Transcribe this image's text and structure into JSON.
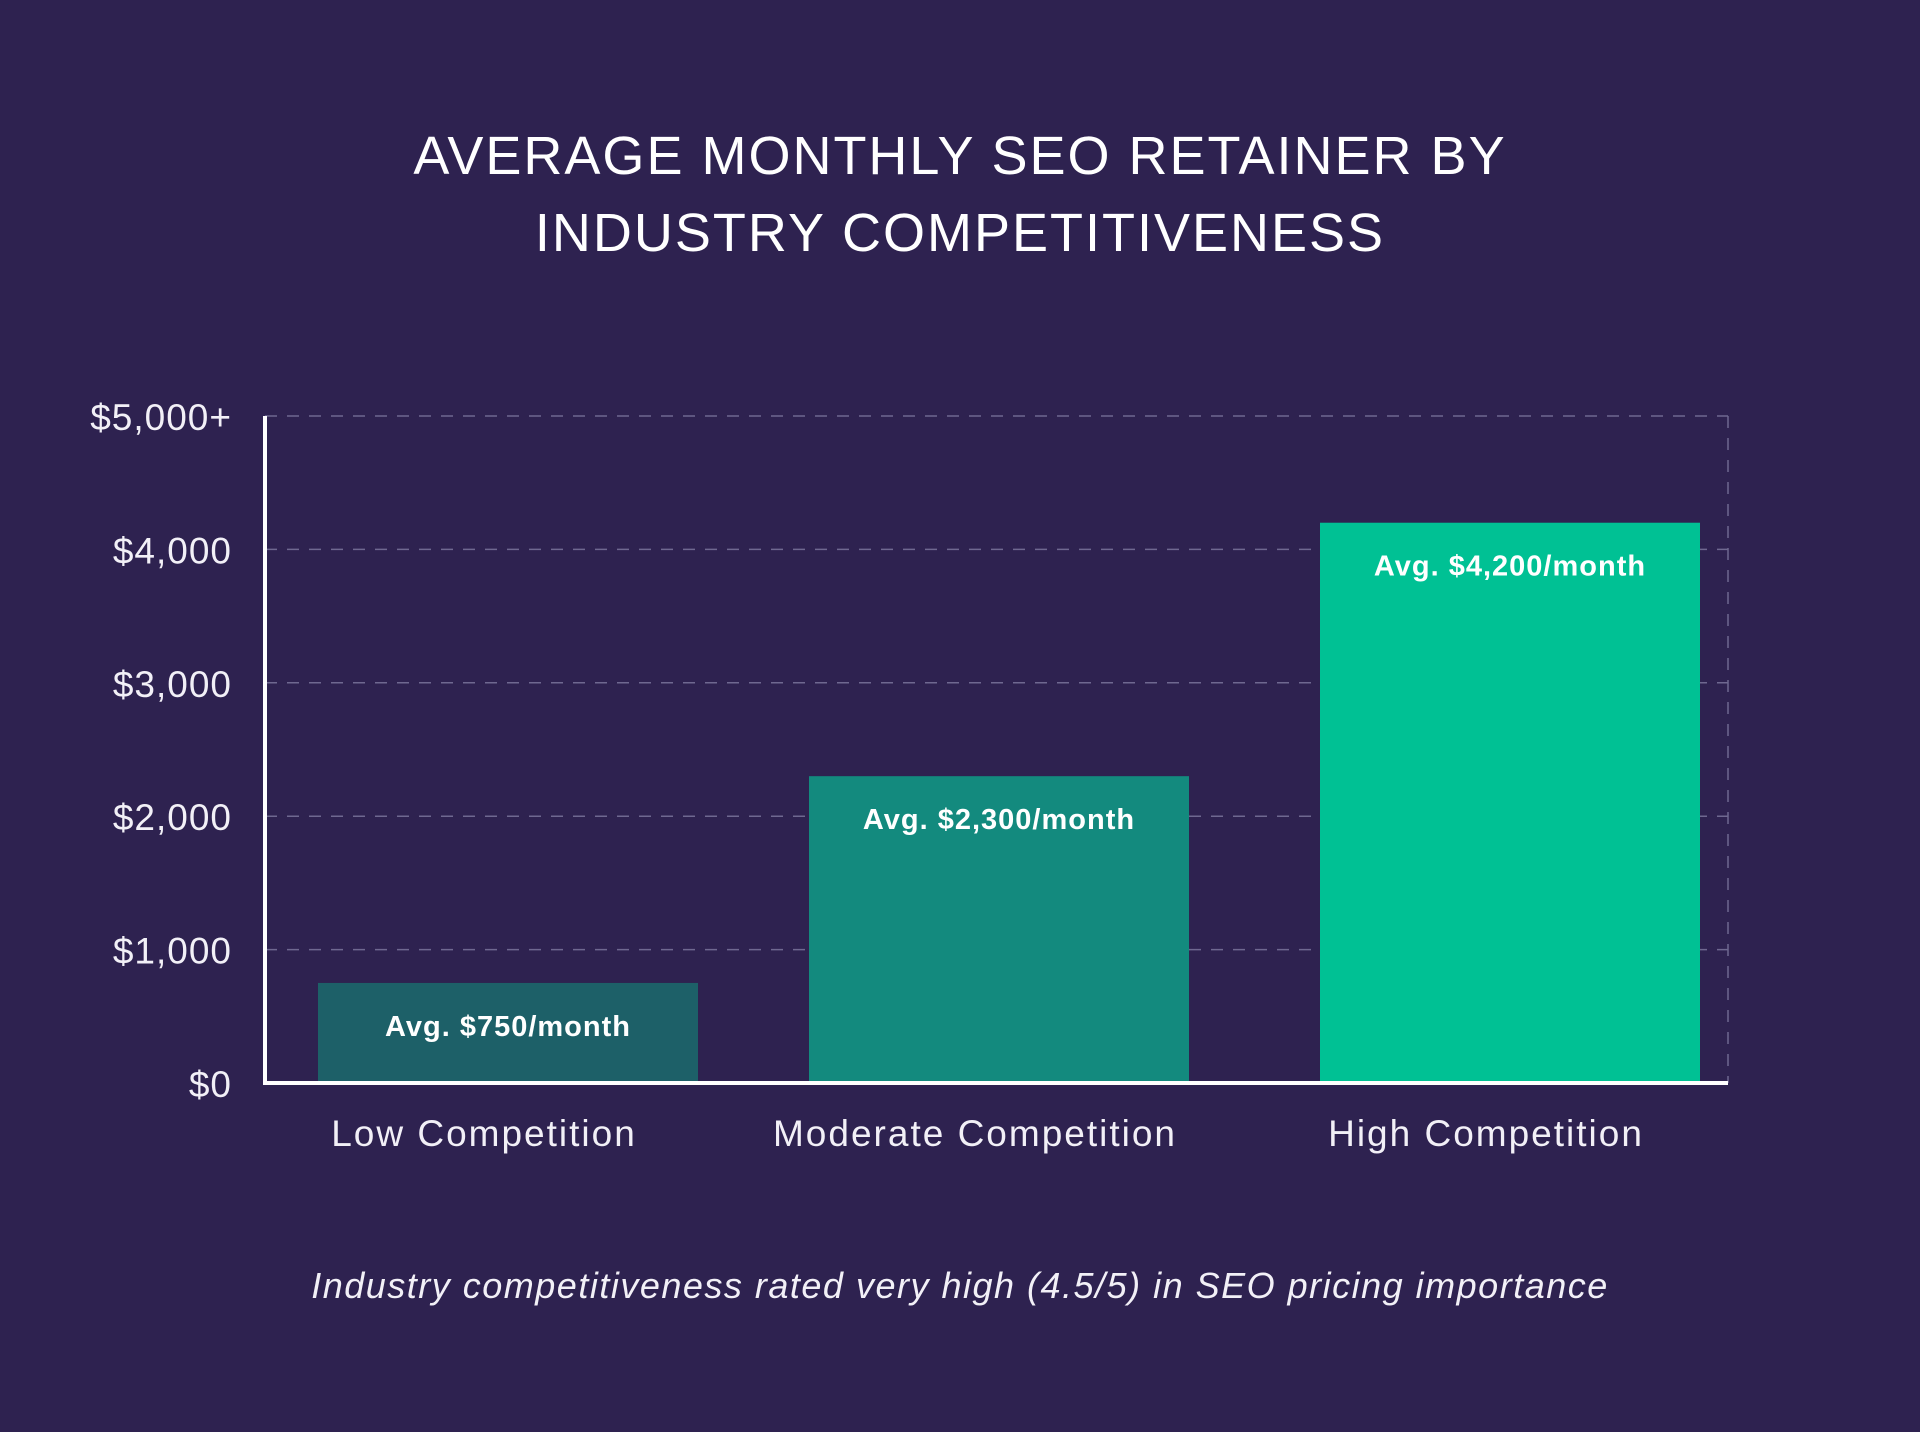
{
  "chart_data": {
    "type": "bar",
    "title": [
      "AVERAGE MONTHLY SEO RETAINER BY",
      "INDUSTRY COMPETITIVENESS"
    ],
    "categories": [
      "Low Competition",
      "Moderate Competition",
      "High Competition"
    ],
    "values": [
      750,
      2300,
      4200
    ],
    "data_labels": [
      "Avg. $750/month",
      "Avg. $2,300/month",
      "Avg. $4,200/month"
    ],
    "bar_colors": [
      "#1d6068",
      "#138a7e",
      "#00c194"
    ],
    "y_ticks": [
      0,
      1000,
      2000,
      3000,
      4000,
      5000
    ],
    "y_tick_labels": [
      "$0",
      "$1,000",
      "$2,000",
      "$3,000",
      "$4,000",
      "$5,000+"
    ],
    "ylim": [
      0,
      5000
    ],
    "xlabel": "",
    "ylabel": "",
    "grid": true,
    "legend": "none",
    "footnote": "Industry competitiveness rated very high (4.5/5) in SEO pricing importance"
  },
  "colors": {
    "background": "#2e2250",
    "text": "#ffffff",
    "grid": "#6f6890"
  }
}
